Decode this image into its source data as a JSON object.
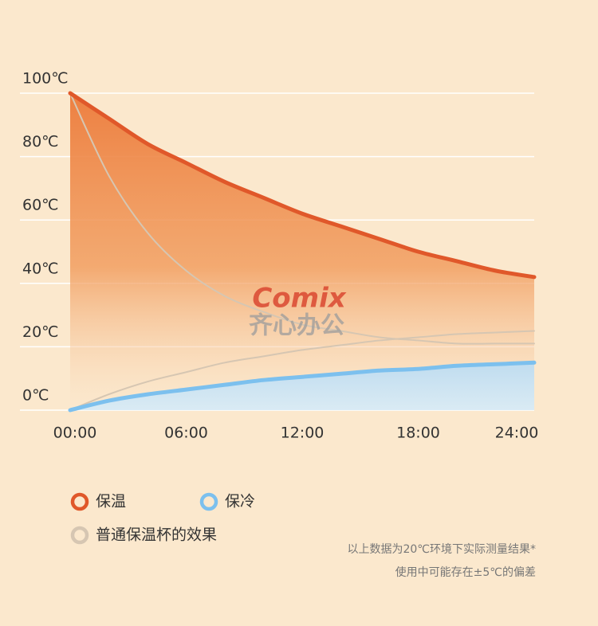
{
  "chart_data": {
    "type": "line",
    "x": [
      0,
      2,
      4,
      6,
      8,
      10,
      12,
      14,
      16,
      18,
      20,
      22,
      24
    ],
    "series": [
      {
        "name": "保温",
        "color": "#e0582a",
        "values": [
          100,
          92,
          84,
          78,
          72,
          67,
          62,
          58,
          54,
          50,
          47,
          44,
          42
        ]
      },
      {
        "name": "保冷",
        "color": "#7cc0ee",
        "values": [
          0,
          3,
          5,
          6.5,
          8,
          9.5,
          10.5,
          11.5,
          12.5,
          13,
          14,
          14.5,
          15
        ]
      },
      {
        "name": "普通保温杯的效果",
        "color": "#d6c6b2",
        "values": [
          100,
          74,
          56,
          44,
          36,
          31,
          27,
          25,
          23,
          22,
          21,
          21,
          21
        ],
        "values2": [
          0,
          5,
          9,
          12,
          15,
          17,
          19,
          20.5,
          22,
          23,
          24,
          24.5,
          25
        ]
      }
    ],
    "xlim": [
      0,
      24
    ],
    "xticks": [
      {
        "value": 0,
        "label": "00:00"
      },
      {
        "value": 6,
        "label": "06:00"
      },
      {
        "value": 12,
        "label": "12:00"
      },
      {
        "value": 18,
        "label": "18:00"
      },
      {
        "value": 24,
        "label": "24:00"
      }
    ],
    "ylim": [
      0,
      100
    ],
    "yticks": [
      {
        "value": 0,
        "label": "0℃"
      },
      {
        "value": 20,
        "label": "20℃"
      },
      {
        "value": 40,
        "label": "40℃"
      },
      {
        "value": 60,
        "label": "60℃"
      },
      {
        "value": 80,
        "label": "80℃"
      },
      {
        "value": 100,
        "label": "100℃"
      }
    ],
    "grid": true,
    "watermark": {
      "brand": "Comix",
      "name": "齐心办公"
    },
    "notes": [
      "以上数据为20℃环境下实际测量结果*",
      "使用中可能存在±5℃的偏差"
    ]
  }
}
